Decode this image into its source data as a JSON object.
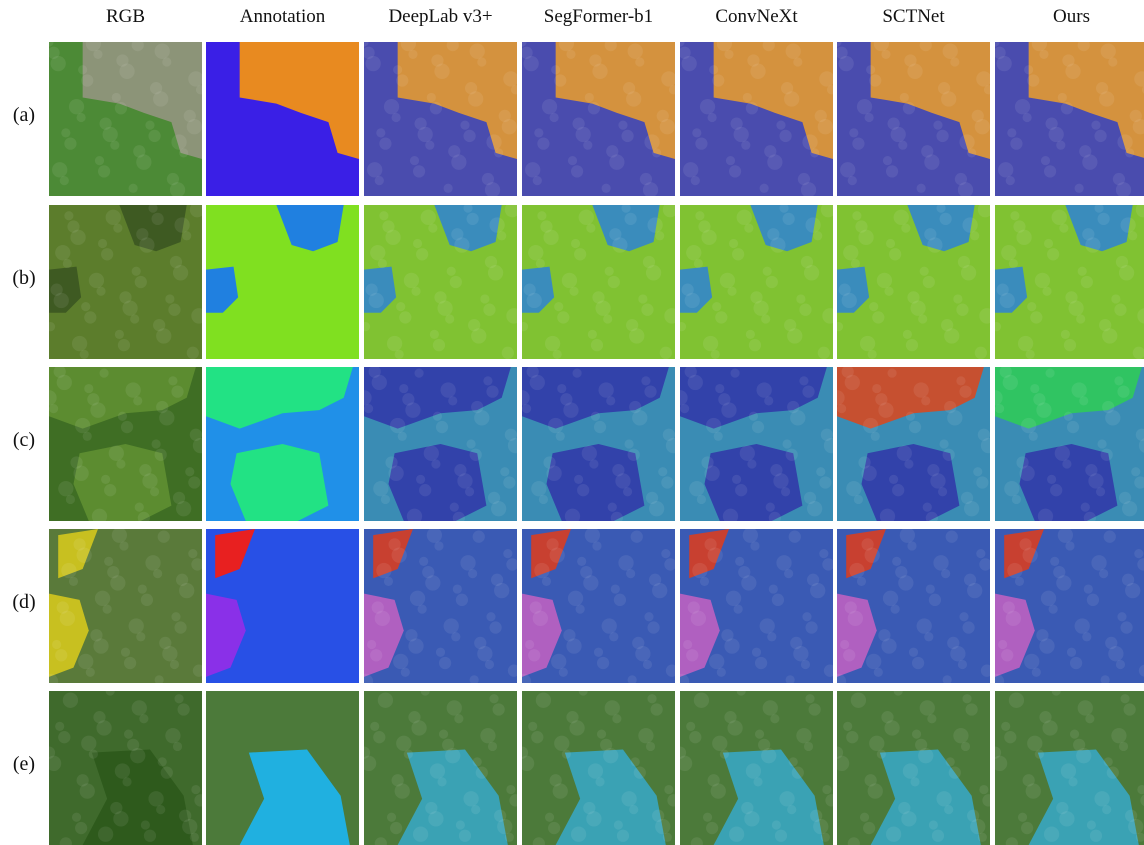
{
  "header": {
    "columns": [
      "RGB",
      "Annotation",
      "DeepLab v3+",
      "SegFormer-b1",
      "ConvNeXt",
      "SCTNet",
      "Ours"
    ]
  },
  "rows": [
    "(a)",
    "(b)",
    "(c)",
    "(d)",
    "(e)"
  ]
}
